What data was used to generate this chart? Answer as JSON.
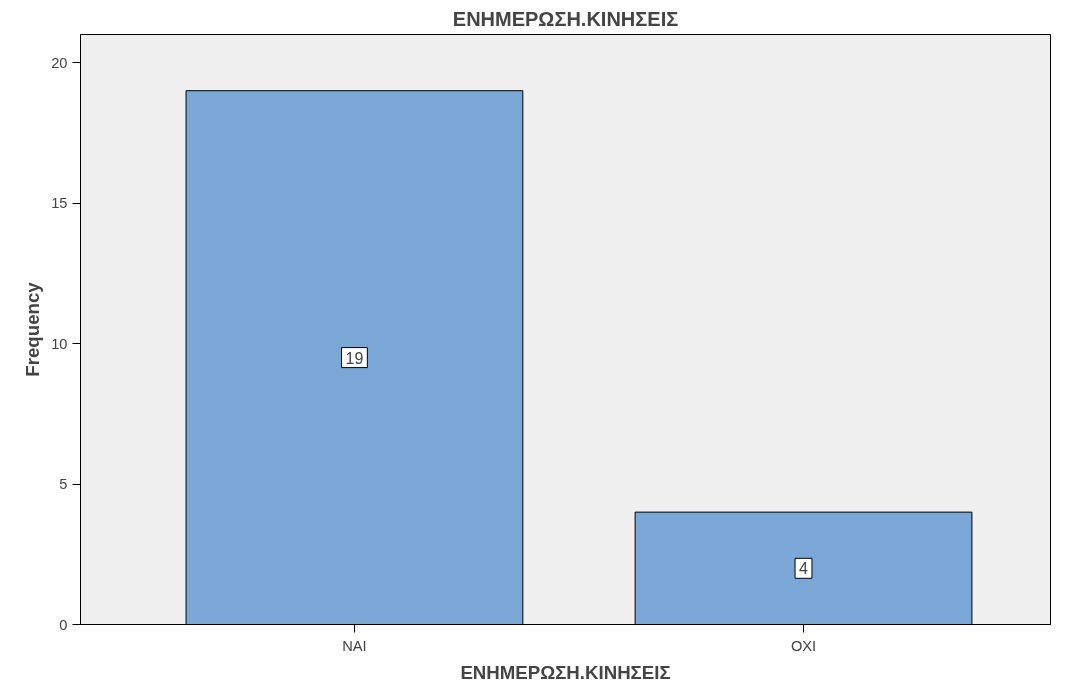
{
  "chart_data": {
    "type": "bar",
    "title": "ΕΝΗΜΕΡΩΣΗ.ΚΙΝΗΣΕΙΣ",
    "xlabel": "ΕΝΗΜΕΡΩΣΗ.ΚΙΝΗΣΕΙΣ",
    "ylabel": "Frequency",
    "categories": [
      "NAI",
      "OXI"
    ],
    "values": [
      19,
      4
    ],
    "color": "#7ba7d6",
    "ylim": [
      0,
      21
    ],
    "yticks": [
      0,
      5,
      10,
      15,
      20
    ],
    "grid": false,
    "data_labels": true
  }
}
